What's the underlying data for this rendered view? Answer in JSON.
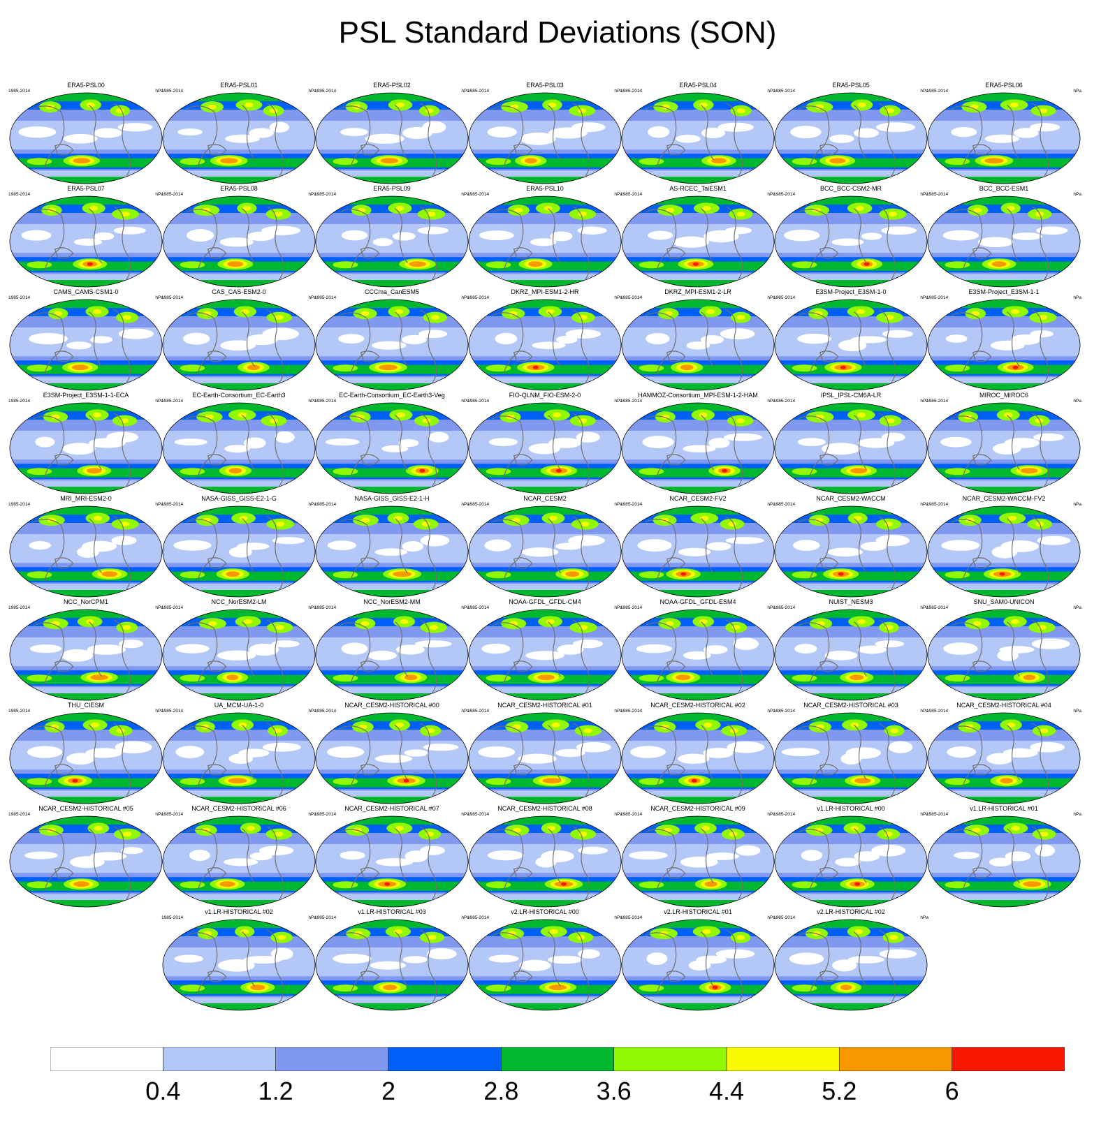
{
  "title": "PSL Standard Deviations (SON)",
  "panel_years": "1985-2014",
  "panel_units": "hPa",
  "panels": [
    "ERA5-PSL00",
    "ERA5-PSL01",
    "ERA5-PSL02",
    "ERA5-PSL03",
    "ERA5-PSL04",
    "ERA5-PSL05",
    "ERA5-PSL06",
    "ERA5-PSL07",
    "ERA5-PSL08",
    "ERA5-PSL09",
    "ERA5-PSL10",
    "AS-RCEC_TaiESM1",
    "BCC_BCC-CSM2-MR",
    "BCC_BCC-ESM1",
    "CAMS_CAMS-CSM1-0",
    "CAS_CAS-ESM2-0",
    "CCCma_CanESM5",
    "DKRZ_MPI-ESM1-2-HR",
    "DKRZ_MPI-ESM1-2-LR",
    "E3SM-Project_E3SM-1-0",
    "E3SM-Project_E3SM-1-1",
    "E3SM-Project_E3SM-1-1-ECA",
    "EC-Earth-Consortium_EC-Earth3",
    "EC-Earth-Consortium_EC-Earth3-Veg",
    "FIO-QLNM_FIO-ESM-2-0",
    "HAMMOZ-Consortium_MPI-ESM-1-2-HAM",
    "IPSL_IPSL-CM6A-LR",
    "MIROC_MIROC6",
    "MRI_MRI-ESM2-0",
    "NASA-GISS_GISS-E2-1-G",
    "NASA-GISS_GISS-E2-1-H",
    "NCAR_CESM2",
    "NCAR_CESM2-FV2",
    "NCAR_CESM2-WACCM",
    "NCAR_CESM2-WACCM-FV2",
    "NCC_NorCPM1",
    "NCC_NorESM2-LM",
    "NCC_NorESM2-MM",
    "NOAA-GFDL_GFDL-CM4",
    "NOAA-GFDL_GFDL-ESM4",
    "NUIST_NESM3",
    "SNU_SAM0-UNICON",
    "THU_CIESM",
    "UA_MCM-UA-1-0",
    "NCAR_CESM2-HISTORICAL_#00",
    "NCAR_CESM2-HISTORICAL_#01",
    "NCAR_CESM2-HISTORICAL_#02",
    "NCAR_CESM2-HISTORICAL_#03",
    "NCAR_CESM2-HISTORICAL_#04",
    "NCAR_CESM2-HISTORICAL_#05",
    "NCAR_CESM2-HISTORICAL_#06",
    "NCAR_CESM2-HISTORICAL_#07",
    "NCAR_CESM2-HISTORICAL_#08",
    "NCAR_CESM2-HISTORICAL_#09",
    "v1.LR-HISTORICAL_#00",
    "v1.LR-HISTORICAL_#01",
    "v1.LR-HISTORICAL_#02",
    "v1.LR-HISTORICAL_#03",
    "v2.LR-HISTORICAL_#00",
    "v2.LR-HISTORICAL_#01",
    "v2.LR-HISTORICAL_#02"
  ],
  "colorbar": {
    "labels": [
      "0.4",
      "1.2",
      "2",
      "2.8",
      "3.6",
      "4.4",
      "5.2",
      "6"
    ],
    "colors": [
      "#ffffff",
      "#b4c8f8",
      "#8098f0",
      "#0060f8",
      "#00b830",
      "#90f800",
      "#f8f800",
      "#f89800",
      "#f81800"
    ]
  },
  "chart_data": {
    "type": "heatmap",
    "title": "PSL Standard Deviations (SON)",
    "units": "hPa",
    "period": "1985-2014",
    "levels": [
      0.4,
      1.2,
      2,
      2.8,
      3.6,
      4.4,
      5.2,
      6
    ],
    "panel_count": 61
  }
}
